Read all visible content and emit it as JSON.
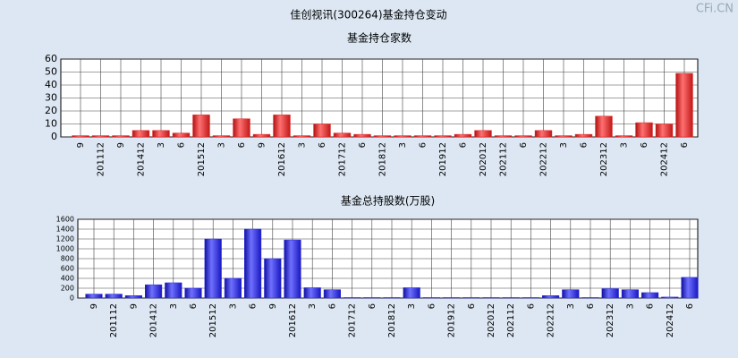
{
  "title": "佳创视讯(300264)基金持仓变动",
  "watermark": "CFi.CN",
  "chart_data": [
    {
      "type": "bar",
      "title": "基金持仓家数",
      "color": "#e02828",
      "categories": [
        "9",
        "201112",
        "9",
        "201412",
        "3",
        "6",
        "201512",
        "3",
        "6",
        "9",
        "201612",
        "3",
        "6",
        "201712",
        "6",
        "201812",
        "3",
        "6",
        "201912",
        "6",
        "202012",
        "202112",
        "6",
        "202212",
        "3",
        "6",
        "202312",
        "3",
        "6",
        "202412",
        "6"
      ],
      "values": [
        1,
        1,
        1,
        5,
        5,
        3,
        17,
        1,
        14,
        2,
        17,
        1,
        10,
        3,
        2,
        1,
        1,
        1,
        1,
        2,
        5,
        1,
        1,
        5,
        1,
        2,
        16,
        1,
        11,
        10,
        49
      ],
      "ylim": [
        0,
        60
      ],
      "yticks": [
        0,
        10,
        20,
        30,
        40,
        50,
        60
      ],
      "grid": true
    },
    {
      "type": "bar",
      "title": "基金总持股数(万股)",
      "color": "#2828e0",
      "categories": [
        "9",
        "201112",
        "9",
        "201412",
        "3",
        "6",
        "201512",
        "3",
        "6",
        "9",
        "201612",
        "3",
        "6",
        "201712",
        "6",
        "201812",
        "3",
        "6",
        "201912",
        "6",
        "202012",
        "202112",
        "6",
        "202212",
        "3",
        "6",
        "202312",
        "3",
        "6",
        "202412",
        "6"
      ],
      "values": [
        80,
        80,
        50,
        270,
        310,
        200,
        1200,
        400,
        1400,
        800,
        1180,
        210,
        170,
        10,
        10,
        10,
        210,
        10,
        10,
        10,
        10,
        10,
        10,
        50,
        170,
        10,
        190,
        170,
        110,
        20,
        420
      ],
      "ylim": [
        0,
        1600
      ],
      "yticks": [
        0,
        200,
        400,
        600,
        800,
        1000,
        1200,
        1400,
        1600
      ],
      "grid": true
    }
  ]
}
